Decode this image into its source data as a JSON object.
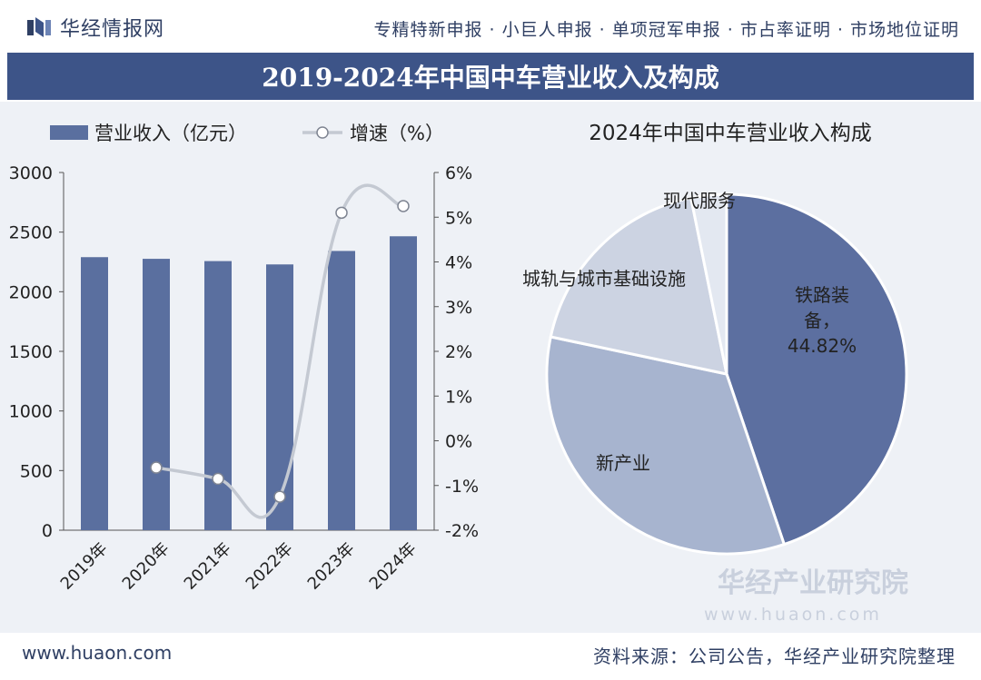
{
  "header": {
    "brand": "华经情报网",
    "services": "专精特新申报 · 小巨人申报 · 单项冠军申报 · 市占率证明 · 市场地位证明"
  },
  "title": "2019-2024年中国中车营业收入及构成",
  "watermark": {
    "name": "华经产业研究院",
    "url": "www.huaon.com"
  },
  "footer": {
    "website": "www.huaon.com",
    "source": "资料来源：公司公告，华经产业研究院整理"
  },
  "colors": {
    "bar": "#5a6f9f",
    "line": "#c4c9d2",
    "title_bg": "#3d5488",
    "panel_bg": "#eef1f6"
  },
  "chart_data": [
    {
      "type": "bar",
      "title": "",
      "categories": [
        "2019年",
        "2020年",
        "2021年",
        "2022年",
        "2023年",
        "2024年"
      ],
      "series": [
        {
          "name": "营业收入（亿元）",
          "axis": "left",
          "type": "bar",
          "values": [
            2290,
            2276,
            2257,
            2229,
            2342,
            2465
          ]
        },
        {
          "name": "增速（%）",
          "axis": "right",
          "type": "line",
          "values": [
            null,
            -0.6,
            -0.85,
            -1.25,
            5.1,
            5.25
          ]
        }
      ],
      "y_left": {
        "min": 0,
        "max": 3000,
        "ticks": [
          "0",
          "500",
          "1000",
          "1500",
          "2000",
          "2500",
          "3000"
        ]
      },
      "y_right": {
        "min": -2,
        "max": 6,
        "ticks": [
          "-2%",
          "-1%",
          "0%",
          "1%",
          "2%",
          "3%",
          "4%",
          "5%",
          "6%"
        ]
      },
      "legend": "top-left"
    },
    {
      "type": "pie",
      "title": "2024年中国中车营业收入构成",
      "slices": [
        {
          "label": "铁路装备",
          "value": 44.82,
          "color": "#5c6fa0",
          "pct_label": "44.82%"
        },
        {
          "label": "新产业",
          "value": 33.5,
          "color": "#a7b4cf"
        },
        {
          "label": "城轨与城市基础设施",
          "value": 18.5,
          "color": "#ccd3e2"
        },
        {
          "label": "现代服务",
          "value": 3.18,
          "color": "#e3e8f1"
        }
      ]
    }
  ]
}
